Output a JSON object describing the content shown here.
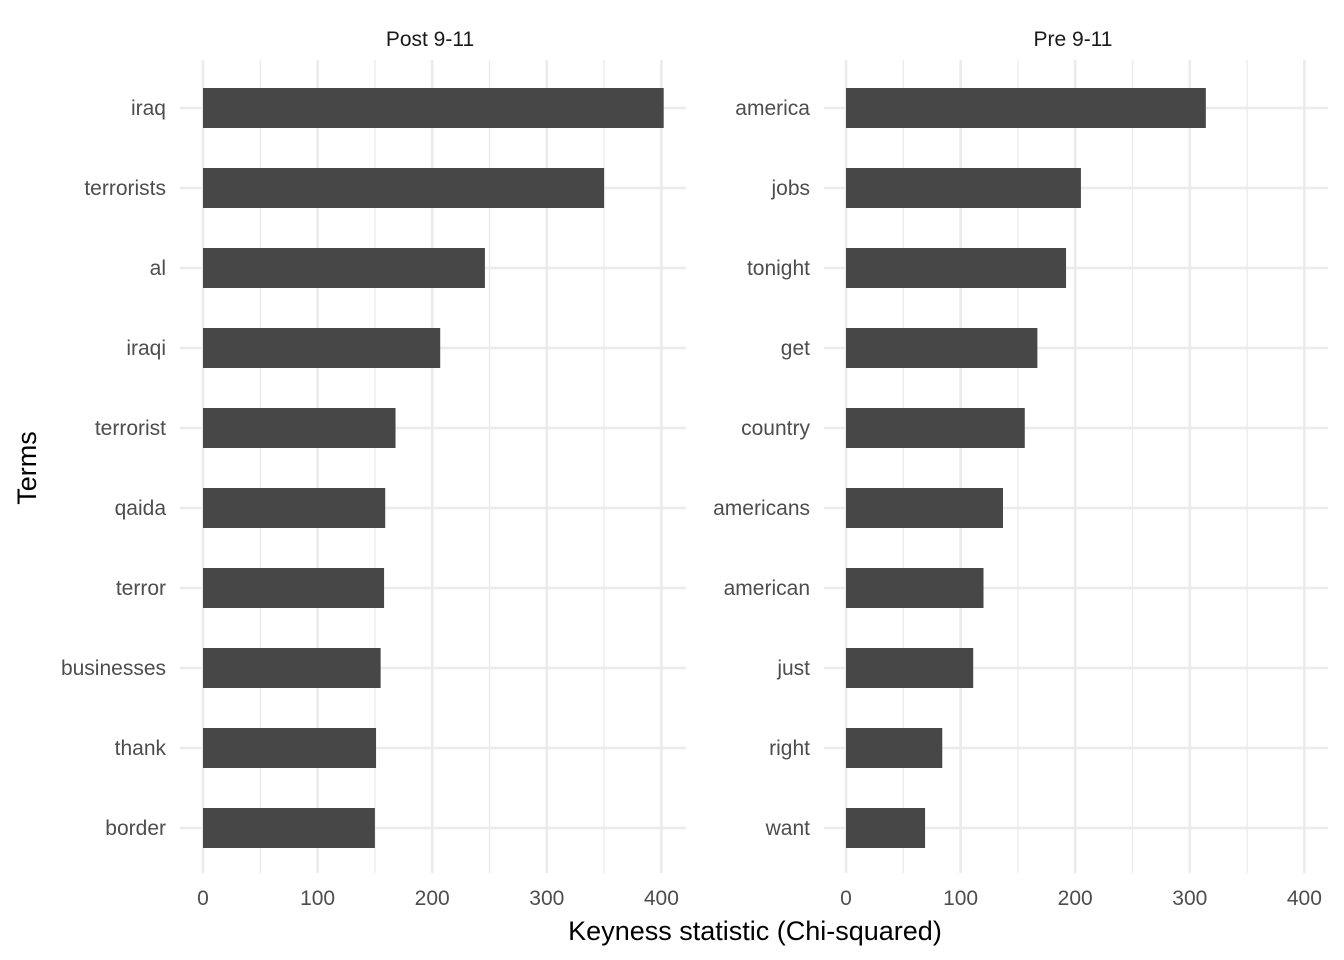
{
  "chart_data": {
    "type": "bar",
    "orientation": "horizontal",
    "xlabel": "Keyness statistic (Chi-squared)",
    "ylabel": "Terms",
    "xlim": [
      0,
      420
    ],
    "xticks": [
      0,
      100,
      200,
      300,
      400
    ],
    "grid": true,
    "bar_color": "#474747",
    "panels": [
      {
        "title": "Post 9-11",
        "categories": [
          "iraq",
          "terrorists",
          "al",
          "iraqi",
          "terrorist",
          "qaida",
          "terror",
          "businesses",
          "thank",
          "border"
        ],
        "values": [
          402,
          350,
          246,
          207,
          168,
          159,
          158,
          155,
          151,
          150
        ]
      },
      {
        "title": "Pre 9-11",
        "categories": [
          "america",
          "jobs",
          "tonight",
          "get",
          "country",
          "americans",
          "american",
          "just",
          "right",
          "want"
        ],
        "values": [
          314,
          205,
          192,
          167,
          156,
          137,
          120,
          111,
          84,
          69
        ]
      }
    ]
  }
}
